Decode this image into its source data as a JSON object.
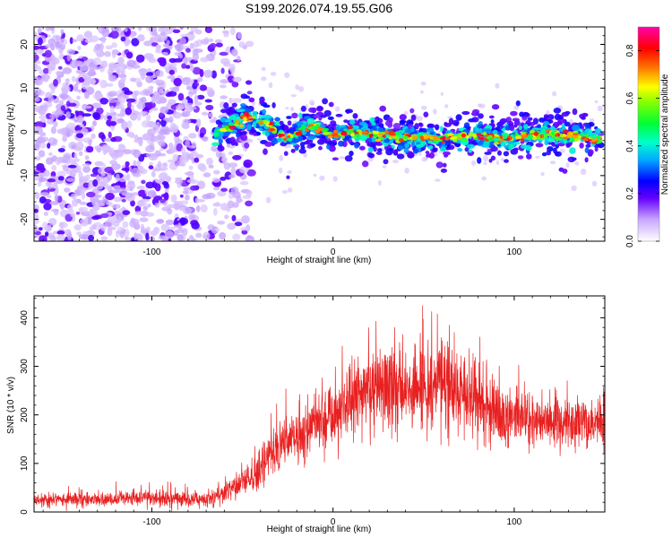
{
  "figure_title": "S199.2026.074.19.55.G06",
  "colors": {
    "colormap": [
      "#ffffff",
      "#6600ff",
      "#0000ff",
      "#00ccff",
      "#00ff66",
      "#ffff00",
      "#ff3300",
      "#ff00cc"
    ],
    "snr_line": "#e82020",
    "spectro_point": "#6a00ff"
  },
  "chart_data": [
    {
      "type": "heatmap",
      "name": "spectrogram",
      "xlabel": "Height of straight line (km)",
      "ylabel": "Frequency (Hz)",
      "xlim": [
        -165,
        150
      ],
      "ylim": [
        -25,
        24
      ],
      "x_ticks": [
        "-100",
        "0",
        "100"
      ],
      "x_tick_values": [
        -100,
        0,
        100
      ],
      "y_ticks": [
        "20",
        "10",
        "0",
        "-10",
        "-20"
      ],
      "y_tick_values": [
        20,
        10,
        0,
        -10,
        -20
      ],
      "ridge": {
        "description_values": "peak frequency (Hz) vs height (km) of the dominant signal",
        "x": [
          -65,
          -60,
          -55,
          -50,
          -45,
          -40,
          -35,
          -30,
          -25,
          -20,
          -15,
          -10,
          -5,
          0,
          10,
          20,
          30,
          40,
          50,
          60,
          70,
          80,
          90,
          100,
          110,
          120,
          130,
          140,
          148
        ],
        "y": [
          -1.0,
          0.5,
          1.5,
          3.0,
          3.2,
          2.5,
          1.5,
          -0.5,
          -1.5,
          -0.5,
          1.2,
          1.0,
          0.2,
          -1.0,
          0.0,
          -0.5,
          -0.8,
          -1.0,
          -1.5,
          -1.8,
          -1.0,
          -0.8,
          -1.6,
          -1.3,
          -0.8,
          -0.5,
          -0.6,
          -1.2,
          -1.6
        ]
      },
      "noise_region_x": [
        -165,
        -45
      ],
      "colorbar": {
        "label": "Normalized spectral amplitude",
        "range": [
          0,
          0.9
        ],
        "ticks": [
          "0.0",
          "0.2",
          "0.4",
          "0.6",
          "0.8"
        ],
        "tick_values": [
          0.0,
          0.2,
          0.4,
          0.6,
          0.8
        ]
      }
    },
    {
      "type": "line",
      "name": "snr",
      "xlabel": "Height of straight line (km)",
      "ylabel": "SNR (10 * v/v)",
      "xlim": [
        -165,
        150
      ],
      "ylim": [
        0,
        445
      ],
      "x_ticks": [
        "-100",
        "0",
        "100"
      ],
      "x_tick_values": [
        -100,
        0,
        100
      ],
      "y_ticks": [
        "0",
        "100",
        "200",
        "300",
        "400"
      ],
      "y_tick_values": [
        0,
        100,
        200,
        300,
        400
      ],
      "series": [
        {
          "name": "SNR",
          "x": [
            -165,
            -150,
            -140,
            -130,
            -120,
            -110,
            -100,
            -90,
            -80,
            -70,
            -65,
            -60,
            -55,
            -50,
            -45,
            -40,
            -35,
            -30,
            -25,
            -20,
            -15,
            -10,
            -5,
            0,
            5,
            10,
            15,
            20,
            25,
            30,
            35,
            40,
            45,
            50,
            55,
            60,
            65,
            70,
            75,
            80,
            85,
            90,
            95,
            100,
            110,
            120,
            130,
            140,
            150
          ],
          "values": [
            25,
            25,
            27,
            27,
            25,
            30,
            28,
            27,
            25,
            28,
            32,
            40,
            48,
            55,
            68,
            90,
            115,
            135,
            150,
            160,
            172,
            185,
            195,
            205,
            215,
            232,
            245,
            250,
            255,
            258,
            262,
            255,
            252,
            258,
            265,
            268,
            262,
            250,
            240,
            235,
            220,
            205,
            195,
            190,
            185,
            185,
            180,
            178,
            178
          ],
          "spread": [
            12,
            12,
            12,
            12,
            12,
            14,
            14,
            14,
            14,
            16,
            18,
            22,
            25,
            28,
            35,
            40,
            45,
            48,
            50,
            55,
            60,
            62,
            65,
            70,
            72,
            75,
            78,
            80,
            82,
            82,
            82,
            80,
            78,
            80,
            82,
            82,
            80,
            75,
            70,
            68,
            62,
            58,
            55,
            52,
            52,
            50,
            48,
            48,
            48
          ]
        }
      ]
    }
  ]
}
